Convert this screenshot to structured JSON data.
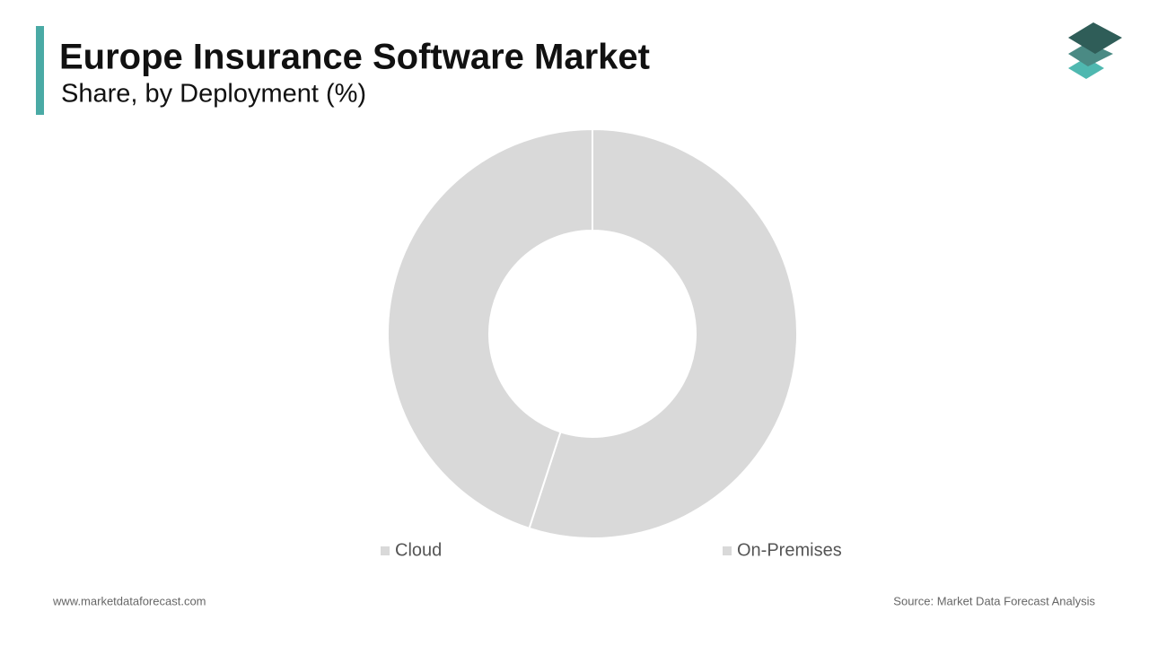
{
  "chart_data": {
    "type": "donut",
    "title": "Europe Insurance Software Market",
    "subtitle": "Share, by Deployment (%)",
    "categories": [
      "Cloud",
      "On-Premises"
    ],
    "values": [
      55,
      45
    ],
    "colors": [
      "#d9d9d9",
      "#d9d9d9"
    ]
  },
  "footer": {
    "website": "www.marketdataforecast.com",
    "source": "Source: Market Data Forecast Analysis"
  }
}
